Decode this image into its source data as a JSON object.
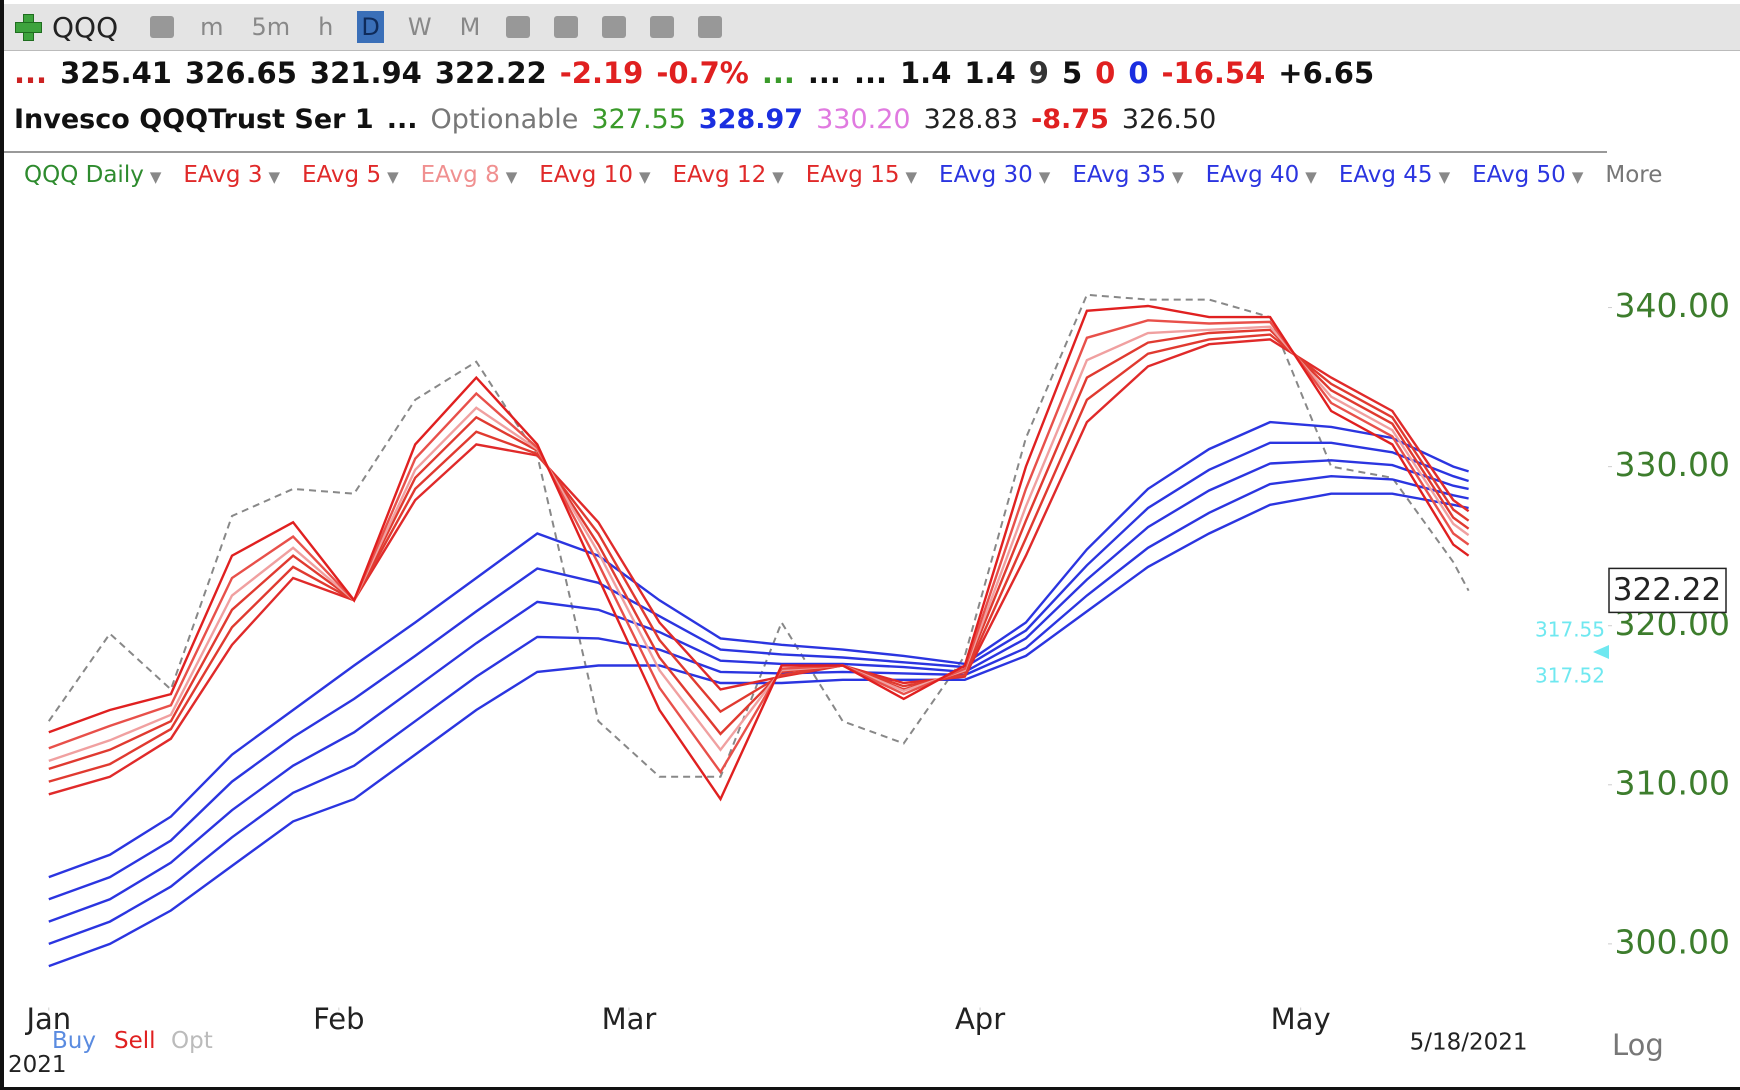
{
  "toolbar": {
    "symbol": "QQQ",
    "intervals": [
      "m",
      "5m",
      "h",
      "D",
      "W",
      "M"
    ],
    "active_interval": "D"
  },
  "quote_row": [
    {
      "text": "...",
      "color": "#cc2222"
    },
    {
      "text": "325.41",
      "color": "#111111"
    },
    {
      "text": "326.65",
      "color": "#111111"
    },
    {
      "text": "321.94",
      "color": "#111111"
    },
    {
      "text": "322.22",
      "color": "#111111"
    },
    {
      "text": "-2.19",
      "color": "#e02020"
    },
    {
      "text": "-0.7%",
      "color": "#e02020"
    },
    {
      "text": "...",
      "color": "#3a9a2a"
    },
    {
      "text": "...",
      "color": "#111111"
    },
    {
      "text": "...",
      "color": "#111111"
    },
    {
      "text": "1.4",
      "color": "#111111"
    },
    {
      "text": "1.4",
      "color": "#111111"
    },
    {
      "text": "9",
      "color": "#333333"
    },
    {
      "text": "5",
      "color": "#111111"
    },
    {
      "text": "0",
      "color": "#e02020"
    },
    {
      "text": "0",
      "color": "#1a2ee0"
    },
    {
      "text": "-16.54",
      "color": "#e02020"
    },
    {
      "text": "+6.65",
      "color": "#111111"
    }
  ],
  "info_row": [
    {
      "text": "Invesco QQQTrust Ser 1",
      "color": "#111111"
    },
    {
      "text": "...",
      "color": "#111111"
    },
    {
      "text": "Optionable",
      "color": "#777777"
    },
    {
      "text": "327.55",
      "color": "#3a9a2a"
    },
    {
      "text": "328.97",
      "color": "#1a2ee0"
    },
    {
      "text": "330.20",
      "color": "#e07ae0"
    },
    {
      "text": "328.83",
      "color": "#222222"
    },
    {
      "text": "-8.75",
      "color": "#e02020"
    },
    {
      "text": "326.50",
      "color": "#222222"
    }
  ],
  "legend_more": "More",
  "bottom_bar": {
    "buy": "Buy",
    "sell": "Sell",
    "opt": "Opt",
    "year": "2021",
    "log": "Log"
  },
  "chart_data": {
    "type": "line",
    "x": [
      0,
      4,
      8,
      12,
      16,
      20,
      24,
      28,
      32,
      36,
      40,
      44,
      48,
      52,
      56,
      60,
      64,
      68,
      72,
      76,
      80,
      84,
      88,
      92,
      93
    ],
    "xlim": [
      -3,
      102
    ],
    "xticks": [
      {
        "value": 0,
        "label": "Jan"
      },
      {
        "value": 19,
        "label": "Feb"
      },
      {
        "value": 38,
        "label": "Mar"
      },
      {
        "value": 61,
        "label": "Apr"
      },
      {
        "value": 82,
        "label": "May"
      }
    ],
    "date_label": "5/18/2021",
    "ylim": [
      296,
      350
    ],
    "yticks": [
      {
        "value": 300,
        "label": "300.00"
      },
      {
        "value": 310,
        "label": "310.00"
      },
      {
        "value": 320,
        "label": "320.00"
      },
      {
        "value": 330,
        "label": "330.00"
      },
      {
        "value": 340,
        "label": "340.00"
      }
    ],
    "last_price": {
      "value": 322.22,
      "label": "322.22"
    },
    "annotations": [
      "317.55",
      "317.52"
    ],
    "series": [
      {
        "name": "QQQ Daily",
        "color": "#888888",
        "label_color": "#2e8b2e",
        "dashed": true,
        "values": [
          314.0,
          319.5,
          316.0,
          326.9,
          328.6,
          328.3,
          334.2,
          336.6,
          330.7,
          314.0,
          310.5,
          310.5,
          320.2,
          314.0,
          312.6,
          318.1,
          331.8,
          340.8,
          340.5,
          340.5,
          339.4,
          330.0,
          329.3,
          324.0,
          322.2
        ]
      },
      {
        "name": "EAvg 50",
        "color": "#2b35e0",
        "label_color": "#2b35e0",
        "values": [
          298.6,
          300.0,
          302.1,
          304.9,
          307.7,
          309.1,
          311.9,
          314.7,
          317.1,
          317.5,
          317.5,
          316.4,
          316.4,
          316.6,
          316.6,
          316.6,
          318.1,
          320.9,
          323.7,
          325.8,
          327.6,
          328.3,
          328.3,
          327.6,
          327.4
        ]
      },
      {
        "name": "EAvg 45",
        "color": "#2b35e0",
        "label_color": "#2b35e0",
        "values": [
          300.0,
          301.4,
          303.6,
          306.7,
          309.5,
          311.2,
          314.0,
          316.8,
          319.3,
          319.2,
          318.5,
          317.1,
          317.0,
          317.1,
          317.0,
          316.9,
          318.6,
          321.9,
          324.9,
          327.1,
          328.9,
          329.4,
          329.2,
          328.2,
          328.0
        ]
      },
      {
        "name": "EAvg 40",
        "color": "#2b35e0",
        "label_color": "#2b35e0",
        "values": [
          301.4,
          302.8,
          305.1,
          308.4,
          311.2,
          313.3,
          316.1,
          318.9,
          321.5,
          321.0,
          319.6,
          317.8,
          317.6,
          317.6,
          317.4,
          317.1,
          319.2,
          322.9,
          326.2,
          328.5,
          330.2,
          330.4,
          330.1,
          328.8,
          328.6
        ]
      },
      {
        "name": "EAvg 35",
        "color": "#2b35e0",
        "label_color": "#2b35e0",
        "values": [
          302.8,
          304.2,
          306.5,
          310.2,
          313.0,
          315.4,
          318.1,
          320.9,
          323.6,
          322.7,
          320.6,
          318.5,
          318.2,
          318.0,
          317.7,
          317.4,
          319.7,
          323.8,
          327.4,
          329.8,
          331.5,
          331.5,
          330.9,
          329.4,
          329.1
        ]
      },
      {
        "name": "EAvg 30",
        "color": "#2b35e0",
        "label_color": "#2b35e0",
        "values": [
          304.2,
          305.6,
          308.0,
          311.9,
          314.7,
          317.5,
          320.2,
          323.0,
          325.8,
          324.4,
          321.6,
          319.2,
          318.8,
          318.5,
          318.1,
          317.6,
          320.2,
          324.8,
          328.6,
          331.1,
          332.8,
          332.5,
          331.8,
          330.0,
          329.7
        ]
      },
      {
        "name": "EAvg 15",
        "color": "#e02a2a",
        "label_color": "#e02a2a",
        "values": [
          309.4,
          310.5,
          312.9,
          318.8,
          323.0,
          321.6,
          327.9,
          331.4,
          330.7,
          326.5,
          320.2,
          316.0,
          316.8,
          317.5,
          316.4,
          316.8,
          324.4,
          332.8,
          336.3,
          337.7,
          338.0,
          335.6,
          333.5,
          327.9,
          327.2
        ]
      },
      {
        "name": "EAvg 12",
        "color": "#e03a30",
        "label_color": "#e02a2a",
        "values": [
          310.2,
          311.3,
          313.5,
          319.9,
          323.7,
          321.6,
          328.6,
          332.2,
          330.8,
          325.8,
          319.1,
          314.6,
          316.9,
          317.5,
          316.2,
          316.9,
          325.5,
          334.2,
          337.1,
          338.0,
          338.3,
          335.2,
          333.1,
          327.3,
          326.6
        ]
      },
      {
        "name": "EAvg 10",
        "color": "#e03a30",
        "label_color": "#e02a2a",
        "values": [
          311.0,
          312.2,
          314.0,
          321.0,
          324.4,
          321.6,
          329.3,
          333.1,
          331.0,
          325.1,
          318.0,
          313.2,
          317.1,
          317.5,
          316.0,
          317.1,
          326.6,
          335.6,
          337.8,
          338.4,
          338.6,
          334.8,
          332.7,
          326.8,
          326.1
        ]
      },
      {
        "name": "EAvg 8",
        "color": "#f0a0a0",
        "label_color": "#f09090",
        "values": [
          311.5,
          312.8,
          314.4,
          321.9,
          324.9,
          321.6,
          329.8,
          333.7,
          331.1,
          324.6,
          317.2,
          312.2,
          317.2,
          317.5,
          315.9,
          317.2,
          327.5,
          336.7,
          338.4,
          338.6,
          338.8,
          334.4,
          332.3,
          326.4,
          325.7
        ]
      },
      {
        "name": "EAvg 5",
        "color": "#e8504a",
        "label_color": "#e02a2a",
        "values": [
          312.3,
          313.7,
          315.0,
          323.0,
          325.6,
          321.6,
          330.5,
          334.6,
          331.2,
          323.9,
          316.1,
          310.8,
          317.3,
          317.5,
          315.7,
          317.3,
          328.6,
          338.1,
          339.2,
          339.0,
          339.1,
          334.0,
          331.9,
          325.8,
          325.1
        ]
      },
      {
        "name": "EAvg 3",
        "color": "#e02020",
        "label_color": "#e02a2a",
        "values": [
          313.3,
          314.7,
          315.7,
          324.4,
          326.5,
          321.6,
          331.4,
          335.6,
          331.4,
          323.0,
          314.7,
          309.1,
          317.5,
          317.5,
          315.4,
          317.5,
          330.0,
          339.8,
          340.1,
          339.4,
          339.4,
          333.5,
          331.4,
          325.1,
          324.4
        ]
      }
    ],
    "legend_order": [
      0,
      11,
      10,
      9,
      8,
      7,
      6,
      5,
      4,
      3,
      2,
      1
    ]
  }
}
